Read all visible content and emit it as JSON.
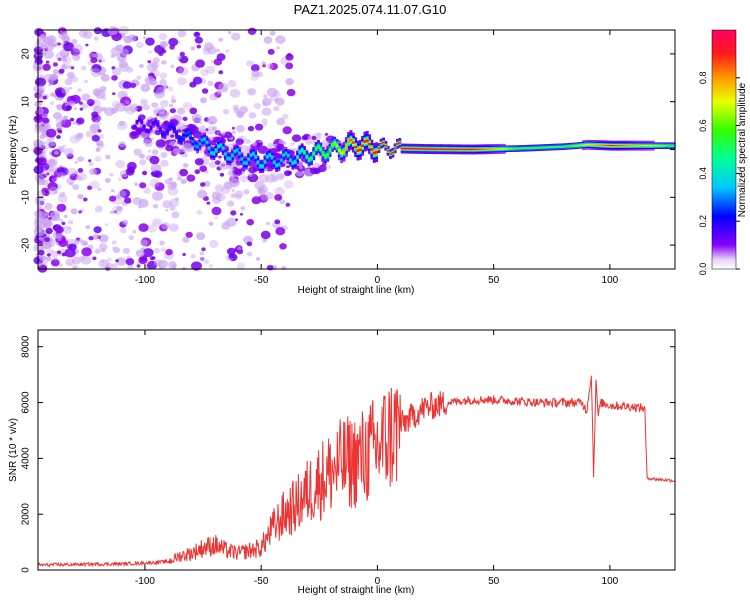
{
  "title": "PAZ1.2025.074.11.07.G10",
  "chart_data": [
    {
      "type": "heatmap",
      "name": "spectrogram",
      "xlabel": "Height of straight line (km)",
      "ylabel": "Frequency (Hz)",
      "xlim": [
        -146,
        128
      ],
      "ylim": [
        -25,
        25
      ],
      "xticks": [
        -100,
        -50,
        0,
        50,
        100
      ],
      "yticks": [
        -20,
        -10,
        0,
        10,
        20
      ],
      "colorbar": {
        "label": "Normalized spectral amplitude",
        "range": [
          0,
          1
        ],
        "ticks": [
          "0.0",
          "0.2",
          "0.4",
          "0.6",
          "0.8"
        ]
      },
      "ridge": {
        "x": [
          -100,
          -90,
          -80,
          -70,
          -60,
          -50,
          -40,
          -30,
          -20,
          -10,
          0,
          10,
          20,
          40,
          60,
          80,
          90,
          100,
          128
        ],
        "frequency": [
          5,
          4,
          2,
          0,
          -1.5,
          -2.5,
          -2,
          -1,
          0,
          1,
          0.3,
          0.2,
          0.1,
          0,
          0.2,
          0.6,
          1,
          0.8,
          0.8
        ],
        "amplitude": [
          0.15,
          0.2,
          0.3,
          0.4,
          0.35,
          0.4,
          0.35,
          0.5,
          0.6,
          0.9,
          0.95,
          1.0,
          1.0,
          0.95,
          0.55,
          0.55,
          0.7,
          0.9,
          0.55
        ]
      }
    },
    {
      "type": "line",
      "name": "snr",
      "xlabel": "Height of straight line (km)",
      "ylabel": "SNR (10 * v/v)",
      "xlim": [
        -146,
        128
      ],
      "ylim": [
        0,
        8600
      ],
      "xticks": [
        -100,
        -50,
        0,
        50,
        100
      ],
      "yticks": [
        0,
        2000,
        4000,
        6000,
        8000
      ],
      "color": "#ee3333",
      "series": [
        {
          "name": "SNR",
          "x": [
            -146,
            -130,
            -110,
            -100,
            -90,
            -85,
            -80,
            -75,
            -70,
            -65,
            -60,
            -55,
            -50,
            -45,
            -40,
            -35,
            -30,
            -25,
            -20,
            -15,
            -10,
            -5,
            0,
            5,
            10,
            15,
            20,
            25,
            30,
            35,
            40,
            50,
            60,
            70,
            80,
            88,
            90,
            92,
            93,
            94,
            95,
            96,
            100,
            110,
            115,
            116,
            120,
            128
          ],
          "values": [
            180,
            200,
            220,
            250,
            300,
            500,
            600,
            800,
            900,
            700,
            600,
            700,
            800,
            1500,
            2000,
            2300,
            2800,
            3200,
            3500,
            3800,
            3900,
            4100,
            4400,
            4800,
            5200,
            5500,
            5800,
            5900,
            6000,
            6050,
            6100,
            6100,
            6050,
            6000,
            6000,
            6000,
            5700,
            7000,
            3400,
            6800,
            5500,
            6000,
            5900,
            5850,
            5800,
            3300,
            3250,
            3200
          ]
        }
      ]
    }
  ]
}
